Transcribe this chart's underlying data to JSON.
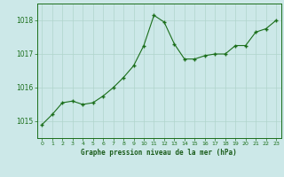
{
  "x": [
    0,
    1,
    2,
    3,
    4,
    5,
    6,
    7,
    8,
    9,
    10,
    11,
    12,
    13,
    14,
    15,
    16,
    17,
    18,
    19,
    20,
    21,
    22,
    23
  ],
  "y": [
    1014.9,
    1015.2,
    1015.55,
    1015.6,
    1015.5,
    1015.55,
    1015.75,
    1016.0,
    1016.3,
    1016.65,
    1017.25,
    1018.15,
    1017.95,
    1017.3,
    1016.85,
    1016.85,
    1016.95,
    1017.0,
    1017.0,
    1017.25,
    1017.25,
    1017.65,
    1017.75,
    1018.0
  ],
  "line_color": "#1a6e1a",
  "marker_color": "#1a6e1a",
  "bg_color": "#cce8e8",
  "grid_color": "#b0d4cc",
  "title": "Graphe pression niveau de la mer (hPa)",
  "title_color": "#1a5c1a",
  "ylim": [
    1014.5,
    1018.5
  ],
  "yticks": [
    1015,
    1016,
    1017,
    1018
  ],
  "xlim": [
    -0.5,
    23.5
  ],
  "xticks": [
    0,
    1,
    2,
    3,
    4,
    5,
    6,
    7,
    8,
    9,
    10,
    11,
    12,
    13,
    14,
    15,
    16,
    17,
    18,
    19,
    20,
    21,
    22,
    23
  ],
  "xtick_labels": [
    "0",
    "1",
    "2",
    "3",
    "4",
    "5",
    "6",
    "7",
    "8",
    "9",
    "10",
    "11",
    "12",
    "13",
    "14",
    "15",
    "16",
    "17",
    "18",
    "19",
    "20",
    "21",
    "22",
    "23"
  ]
}
